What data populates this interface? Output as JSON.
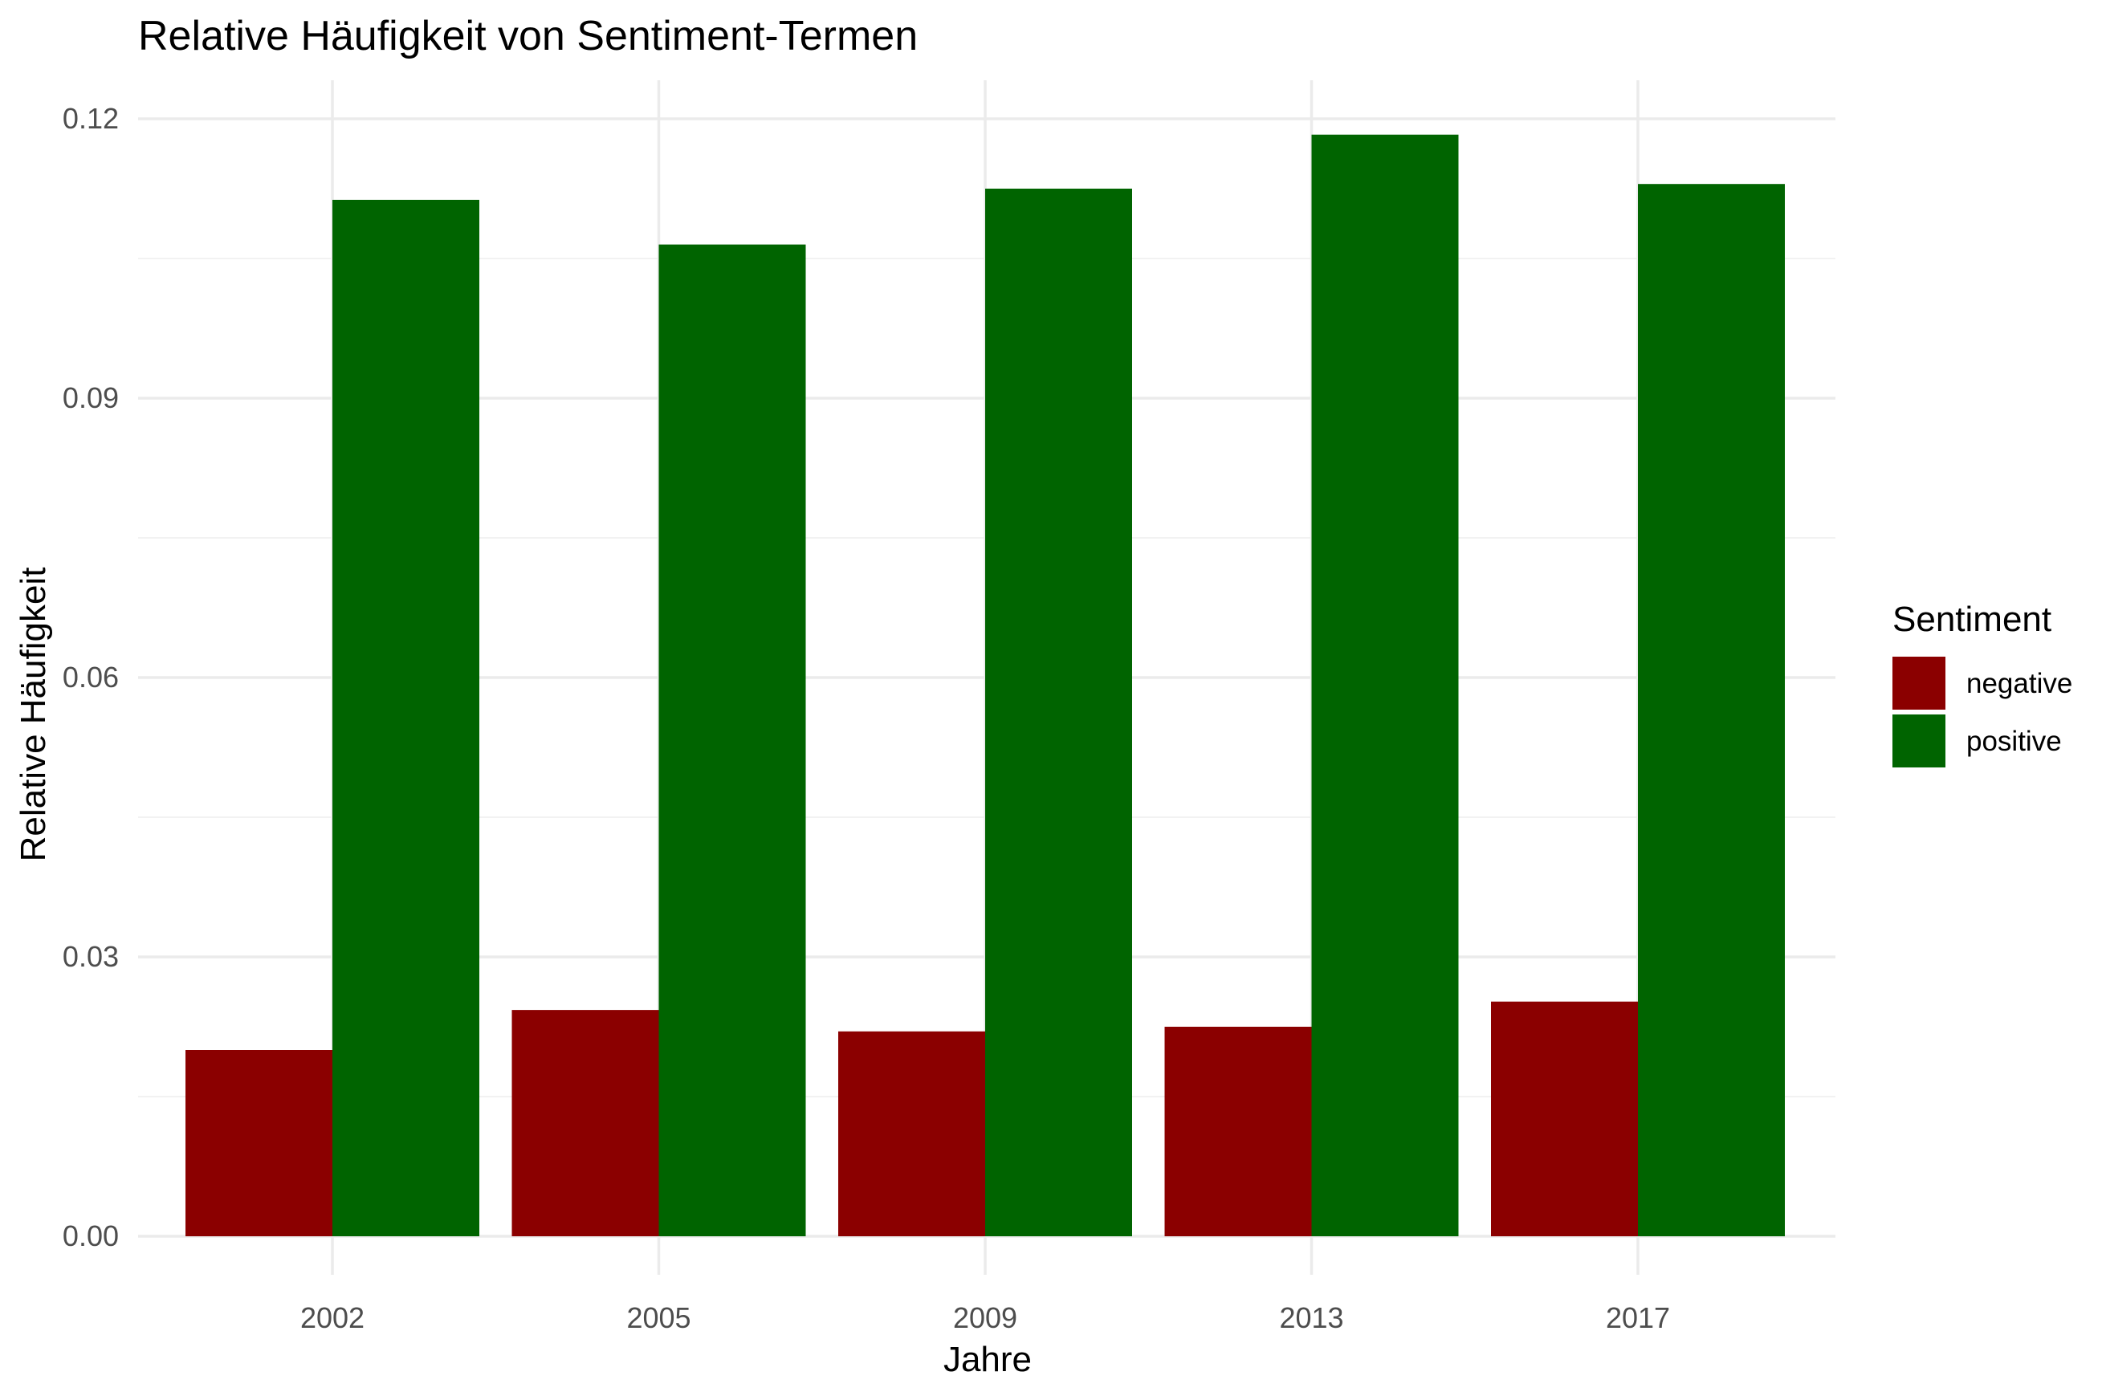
{
  "chart_data": {
    "type": "bar",
    "title": "Relative Häufigkeit von Sentiment-Termen",
    "xlabel": "Jahre",
    "ylabel": "Relative Häufigkeit",
    "categories": [
      "2002",
      "2005",
      "2009",
      "2013",
      "2017"
    ],
    "series": [
      {
        "name": "negative",
        "color": "#8b0000",
        "values": [
          0.02,
          0.0243,
          0.022,
          0.0225,
          0.0252
        ]
      },
      {
        "name": "positive",
        "color": "#006400",
        "values": [
          0.1113,
          0.1065,
          0.1125,
          0.1183,
          0.113
        ]
      }
    ],
    "ylim": [
      0,
      0.12
    ],
    "yticks": [
      "0.00",
      "0.03",
      "0.06",
      "0.09",
      "0.12"
    ],
    "ytick_values": [
      0,
      0.03,
      0.06,
      0.09,
      0.12
    ],
    "grid": true,
    "legend": {
      "title": "Sentiment",
      "position": "right"
    }
  }
}
